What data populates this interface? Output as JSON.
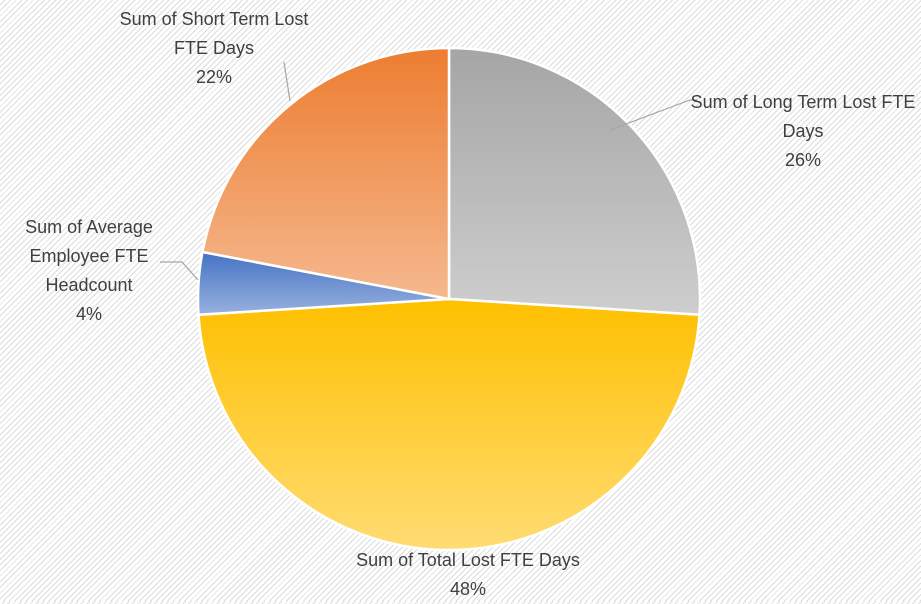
{
  "chart_data": {
    "type": "pie",
    "categories": [
      "Sum of Long Term Lost FTE Days",
      "Sum of Total Lost FTE Days",
      "Sum of Average Employee FTE Headcount",
      "Sum of Short Term Lost FTE Days"
    ],
    "values": [
      26,
      48,
      4,
      22
    ],
    "value_labels": [
      "26%",
      "48%",
      "4%",
      "22%"
    ],
    "colors": [
      "#a5a5a5",
      "#ffc000",
      "#4472c4",
      "#ed7d31"
    ]
  }
}
